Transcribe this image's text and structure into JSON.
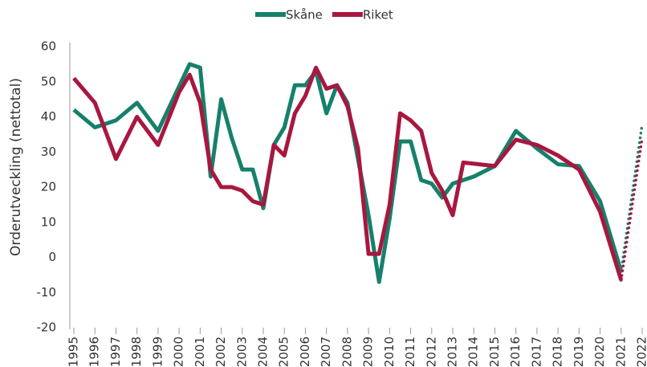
{
  "chart_data": {
    "type": "line",
    "y_label": "Orderutveckling (nettotal)",
    "xlim": [
      1995,
      2022
    ],
    "xticks": [
      1995,
      1996,
      1997,
      1998,
      1999,
      2000,
      2001,
      2002,
      2003,
      2004,
      2005,
      2006,
      2007,
      2008,
      2009,
      2010,
      2011,
      2012,
      2013,
      2014,
      2015,
      2016,
      2017,
      2018,
      2019,
      2020,
      2021,
      2022
    ],
    "ylim": [
      -20,
      60
    ],
    "yticks": [
      -20,
      -10,
      0,
      10,
      20,
      30,
      40,
      50,
      60
    ],
    "grid": false,
    "legend": "top",
    "dotted_after": 2021,
    "series": [
      {
        "name": "Skåne",
        "color": "#16806b",
        "x": [
          1995,
          1996,
          1997,
          1998,
          1999,
          2000.5,
          2001,
          2001.5,
          2002,
          2002.5,
          2003,
          2003.5,
          2004,
          2004.5,
          2005,
          2005.5,
          2006,
          2006.5,
          2007,
          2007.5,
          2008,
          2009,
          2009.5,
          2010,
          2010.5,
          2011,
          2011.5,
          2012,
          2012.5,
          2013,
          2014,
          2015,
          2016,
          2017,
          2018,
          2019,
          2020,
          2021,
          2022
        ],
        "values": [
          42,
          37,
          39,
          44,
          36,
          55,
          54,
          23,
          45,
          34,
          25,
          25,
          14,
          32,
          37,
          49,
          49,
          53,
          41,
          49,
          44,
          12,
          -7,
          11,
          33,
          33,
          22,
          21,
          17,
          21,
          23,
          26,
          36,
          31,
          26.5,
          26,
          16,
          -4,
          38
        ]
      },
      {
        "name": "Riket",
        "color": "#a8173f",
        "x": [
          1995,
          1996,
          1997,
          1998,
          1999,
          2000,
          2000.5,
          2001,
          2001.5,
          2002,
          2002.5,
          2003,
          2003.5,
          2004,
          2004.5,
          2005,
          2005.5,
          2006,
          2006.5,
          2007,
          2007.5,
          2008,
          2008.5,
          2009,
          2009.5,
          2010,
          2010.5,
          2011,
          2011.5,
          2012,
          2012.5,
          2013,
          2013.5,
          2015,
          2016,
          2017,
          2018,
          2019,
          2020,
          2021,
          2022
        ],
        "values": [
          51,
          44,
          28,
          40,
          32,
          47,
          52,
          44,
          25,
          20,
          20,
          19,
          16,
          15,
          32,
          29,
          41,
          46,
          54,
          48,
          49,
          43,
          31,
          1,
          1,
          15,
          41,
          39,
          36,
          24,
          19,
          12,
          27,
          26,
          33.5,
          32,
          29,
          25,
          13,
          -6.5,
          34
        ]
      }
    ]
  }
}
